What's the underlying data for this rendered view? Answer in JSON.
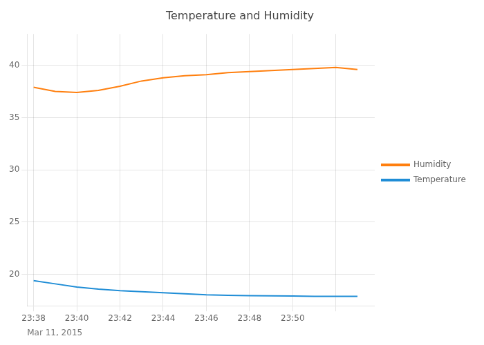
{
  "chart_data": {
    "type": "line",
    "title": "Temperature and Humidity",
    "annotations": [
      "Mar 11, 2015"
    ],
    "x": [
      0,
      1,
      2,
      3,
      4,
      5,
      6,
      7,
      8,
      9,
      10,
      11,
      12,
      13,
      14,
      15
    ],
    "series": [
      {
        "name": "Humidity",
        "color": "#ff7f0e",
        "values": [
          37.9,
          37.5,
          37.4,
          37.6,
          38.0,
          38.5,
          38.8,
          39.0,
          39.1,
          39.3,
          39.4,
          39.5,
          39.6,
          39.7,
          39.8,
          39.6
        ]
      },
      {
        "name": "Temperature",
        "color": "#1f8dd6",
        "values": [
          19.4,
          19.1,
          18.8,
          18.6,
          18.45,
          18.35,
          18.25,
          18.15,
          18.05,
          18.0,
          17.97,
          17.95,
          17.93,
          17.91,
          17.9,
          17.9
        ]
      }
    ],
    "xlim": [
      -0.3,
      15.8
    ],
    "xticks": [
      {
        "value": 0,
        "label": "23:38"
      },
      {
        "value": 2,
        "label": "23:40"
      },
      {
        "value": 4,
        "label": "23:42"
      },
      {
        "value": 6,
        "label": "23:44"
      },
      {
        "value": 8,
        "label": "23:46"
      },
      {
        "value": 10,
        "label": "23:48"
      },
      {
        "value": 12,
        "label": "23:50"
      },
      {
        "value": 14,
        "label": ""
      }
    ],
    "ylim": [
      17.0,
      43.0
    ],
    "yticks": [
      20,
      25,
      30,
      35,
      40
    ],
    "grid": true,
    "legend": "right"
  }
}
